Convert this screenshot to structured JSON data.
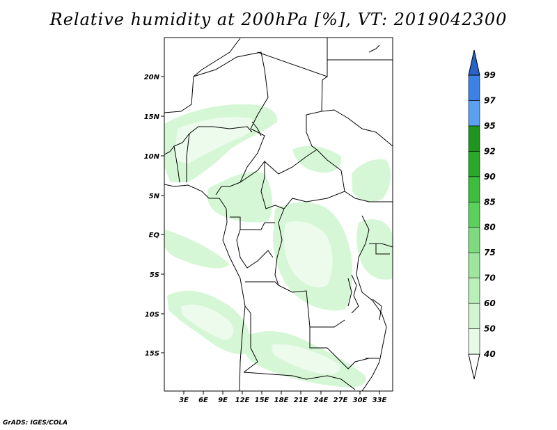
{
  "title": "Relative humidity at 200hPa [%], VT: 2019042300",
  "footer": "GrADS: IGES/COLA",
  "map": {
    "lat_labels": [
      "20N",
      "15N",
      "10N",
      "5N",
      "EQ",
      "5S",
      "10S",
      "15S"
    ],
    "lon_labels": [
      "3E",
      "6E",
      "9E",
      "12E",
      "15E",
      "18E",
      "21E",
      "24E",
      "27E",
      "30E",
      "33E"
    ],
    "lon_range": [
      0,
      35
    ],
    "lat_range": [
      -19.5,
      25
    ]
  },
  "colorbar": {
    "labels": [
      "40",
      "50",
      "60",
      "70",
      "75",
      "80",
      "85",
      "90",
      "92",
      "95",
      "97",
      "99"
    ],
    "colors": [
      "#ffffff",
      "#e6fae6",
      "#d2f5d2",
      "#b8f0b8",
      "#9de69d",
      "#7ddc7d",
      "#5ad25a",
      "#3cbe3c",
      "#28aa28",
      "#1e961e",
      "#5aa0f0",
      "#3c82e6",
      "#2864c8"
    ]
  }
}
